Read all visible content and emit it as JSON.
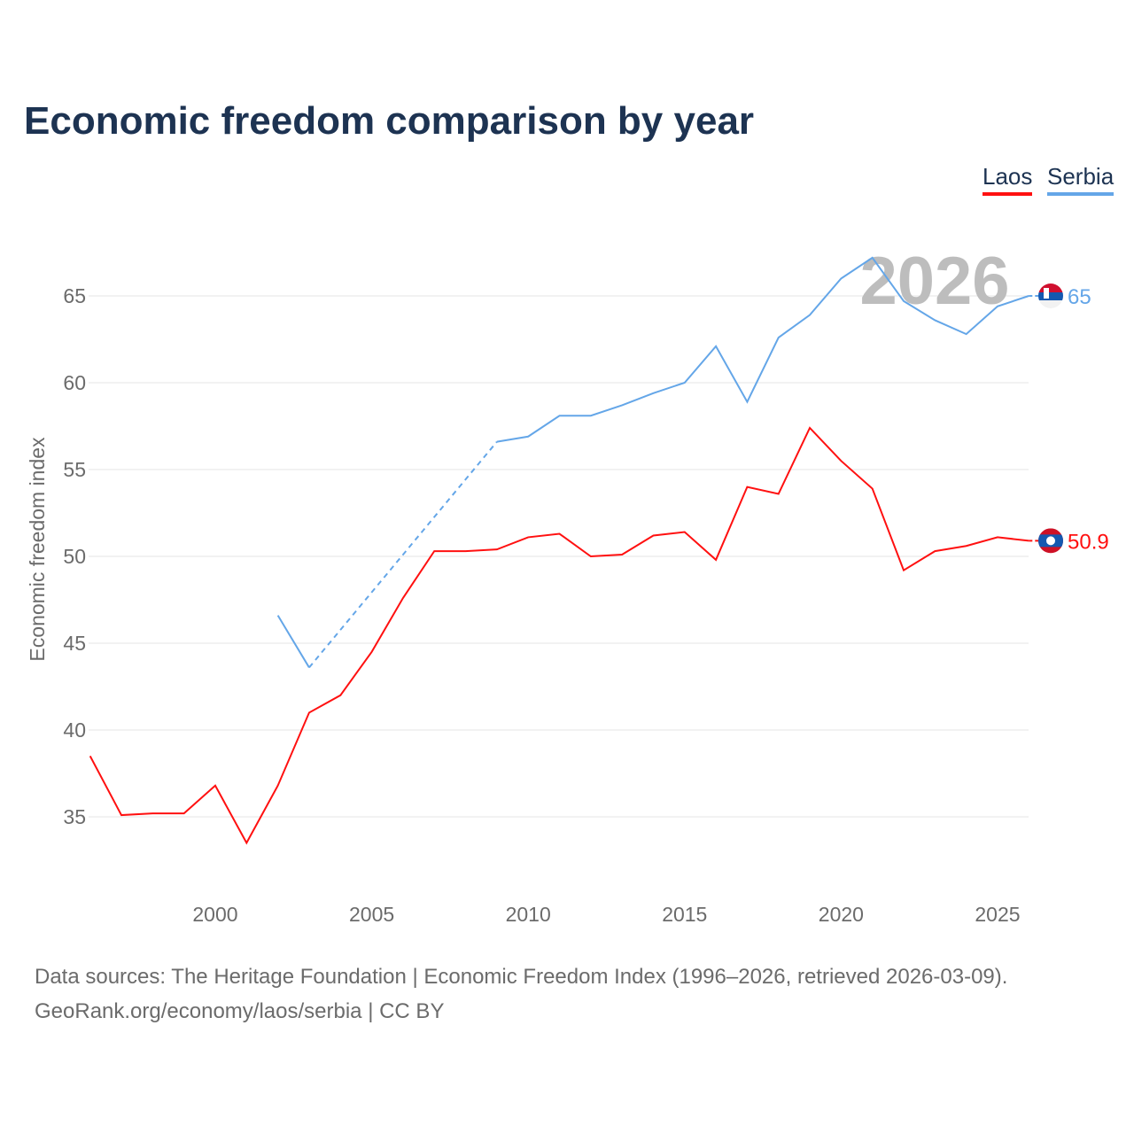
{
  "chart_data": {
    "type": "line",
    "title": "Economic freedom comparison by year",
    "xlabel": "",
    "ylabel": "Economic freedom index",
    "x": [
      1996,
      1997,
      1998,
      1999,
      2000,
      2001,
      2002,
      2003,
      2004,
      2005,
      2006,
      2007,
      2008,
      2009,
      2010,
      2011,
      2012,
      2013,
      2014,
      2015,
      2016,
      2017,
      2018,
      2019,
      2020,
      2021,
      2022,
      2023,
      2024,
      2025,
      2026
    ],
    "xlim": [
      1996,
      2026
    ],
    "ylim": [
      30.5,
      69
    ],
    "xticks": [
      "2000",
      "2005",
      "2010",
      "2015",
      "2020",
      "2025"
    ],
    "yticks": [
      "35",
      "40",
      "45",
      "50",
      "55",
      "60",
      "65"
    ],
    "grid": true,
    "legend_position": "top-right",
    "current_year_label": "2026",
    "series": [
      {
        "name": "Laos",
        "color": "#ff1010",
        "end_label": "50.9",
        "values": [
          38.5,
          35.1,
          35.2,
          35.2,
          36.8,
          33.5,
          36.8,
          41.0,
          42.0,
          44.5,
          47.6,
          50.3,
          50.3,
          50.4,
          51.1,
          51.3,
          50.0,
          50.1,
          51.2,
          51.4,
          49.8,
          54.0,
          53.6,
          57.4,
          55.5,
          53.9,
          49.2,
          50.3,
          50.6,
          51.1,
          50.9
        ]
      },
      {
        "name": "Serbia",
        "color": "#64a6e8",
        "end_label": "65",
        "values": [
          null,
          null,
          null,
          null,
          null,
          null,
          46.6,
          43.6,
          null,
          null,
          null,
          null,
          null,
          56.6,
          56.9,
          58.1,
          58.1,
          58.7,
          59.4,
          60.0,
          62.1,
          58.9,
          62.6,
          63.9,
          66.0,
          67.2,
          64.7,
          63.6,
          62.8,
          64.4,
          65.0
        ]
      }
    ]
  },
  "legend": {
    "laos": "Laos",
    "serbia": "Serbia"
  },
  "footer": {
    "line1": "Data sources: The Heritage Foundation | Economic Freedom Index (1996–2026, retrieved 2026-03-09).",
    "line2": "GeoRank.org/economy/laos/serbia | CC BY"
  }
}
